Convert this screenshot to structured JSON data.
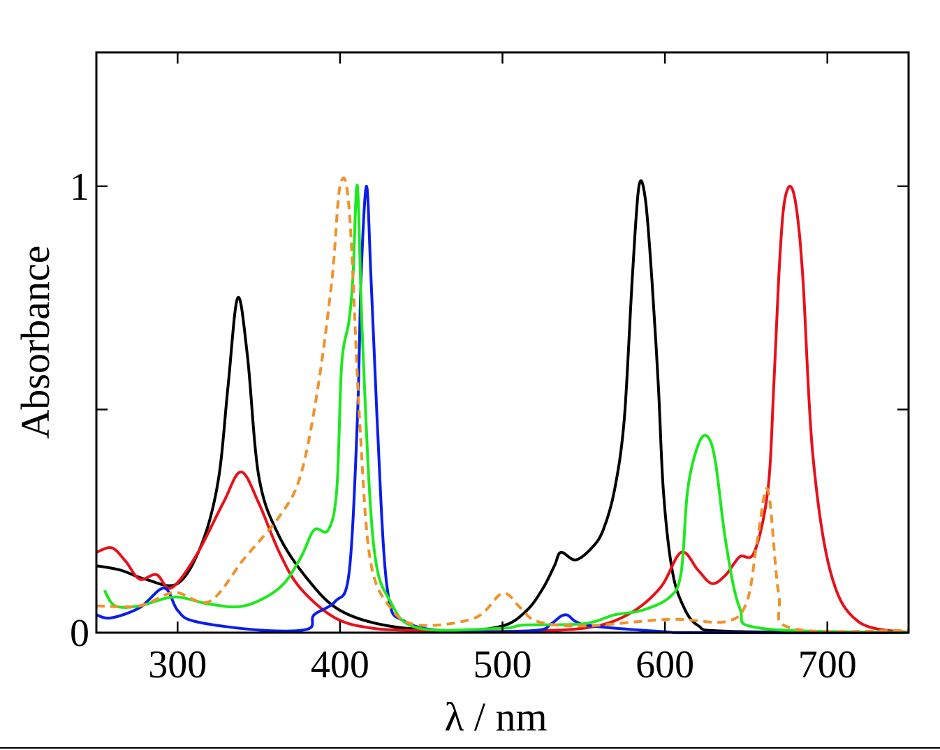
{
  "chart_data": {
    "type": "line",
    "title": "",
    "xlabel": "λ / nm",
    "ylabel": "Absorbance",
    "xlim": [
      250,
      750
    ],
    "ylim": [
      0,
      1.3
    ],
    "xticks": [
      300,
      400,
      500,
      600,
      700
    ],
    "xtick_labels": [
      "300",
      "400",
      "500",
      "600",
      "700"
    ],
    "yticks": [
      0,
      0.5,
      1
    ],
    "ytick_labels": [
      "0",
      "",
      "1"
    ],
    "grid": false,
    "legend": "none",
    "series": [
      {
        "name": "black",
        "color": "#000000",
        "dashed": false,
        "x": [
          250,
          265,
          280,
          300,
          315,
          325,
          331,
          337,
          343,
          350,
          362,
          380,
          400,
          430,
          470,
          500,
          515,
          525,
          532,
          536,
          545,
          555,
          562,
          569,
          575,
          580,
          584,
          588,
          592,
          596,
          599,
          604,
          610,
          620,
          640,
          750
        ],
        "y": [
          0.15,
          0.14,
          0.12,
          0.11,
          0.2,
          0.34,
          0.55,
          0.75,
          0.62,
          0.35,
          0.22,
          0.12,
          0.05,
          0.015,
          0.005,
          0.015,
          0.05,
          0.1,
          0.15,
          0.18,
          0.163,
          0.19,
          0.23,
          0.32,
          0.48,
          0.8,
          1.0,
          0.97,
          0.79,
          0.55,
          0.32,
          0.15,
          0.07,
          0.017,
          0.003,
          0
        ]
      },
      {
        "name": "red",
        "color": "#e8101a",
        "dashed": false,
        "x": [
          250,
          259.5,
          268,
          276.6,
          287,
          296,
          311,
          328,
          339,
          350,
          362.6,
          375.5,
          397,
          420,
          450,
          500,
          550,
          577,
          597,
          610,
          620.4,
          629,
          637.6,
          646,
          655,
          663.4,
          667,
          670,
          673,
          677,
          681,
          685,
          691,
          702,
          719,
          750
        ],
        "y": [
          0.18,
          0.19,
          0.16,
          0.12,
          0.13,
          0.1,
          0.17,
          0.29,
          0.36,
          0.29,
          0.18,
          0.1,
          0.033,
          0.01,
          0.005,
          0.003,
          0.01,
          0.04,
          0.1,
          0.18,
          0.14,
          0.11,
          0.13,
          0.17,
          0.18,
          0.32,
          0.55,
          0.79,
          0.95,
          1.0,
          0.95,
          0.79,
          0.4,
          0.135,
          0.025,
          0
        ]
      },
      {
        "name": "blue",
        "color": "#0a1ee8",
        "dashed": false,
        "x": [
          250,
          259,
          276.6,
          291.7,
          300,
          311,
          350,
          380,
          384,
          397,
          405.6,
          410.7,
          413,
          416.3,
          419,
          422.8,
          429,
          440,
          470,
          520,
          530,
          539,
          551.7,
          600,
          620,
          750
        ],
        "y": [
          0.04,
          0.033,
          0.056,
          0.1,
          0.05,
          0.025,
          0.006,
          0.008,
          0.04,
          0.07,
          0.135,
          0.48,
          0.8,
          1.0,
          0.8,
          0.48,
          0.1,
          0.025,
          0.003,
          0.005,
          0.02,
          0.04,
          0.017,
          0.002,
          0,
          0
        ]
      },
      {
        "name": "green",
        "color": "#1ee81e",
        "dashed": false,
        "x": [
          255,
          261.6,
          276.6,
          298,
          319.6,
          341,
          362.6,
          375.5,
          384,
          392.7,
          398,
          401,
          405.6,
          408,
          410.7,
          414,
          420.6,
          431,
          448.5,
          500,
          513,
          550,
          569,
          586,
          603,
          610,
          614,
          620.4,
          626,
          631,
          637.6,
          646,
          659,
          750
        ],
        "y": [
          0.095,
          0.06,
          0.06,
          0.08,
          0.064,
          0.06,
          0.1,
          0.166,
          0.23,
          0.23,
          0.32,
          0.6,
          0.7,
          0.8,
          1.0,
          0.64,
          0.2,
          0.07,
          0.01,
          0.01,
          0.017,
          0.02,
          0.04,
          0.05,
          0.08,
          0.135,
          0.32,
          0.42,
          0.44,
          0.385,
          0.2,
          0.056,
          0.01,
          0
        ]
      },
      {
        "name": "orange",
        "color": "#f0922a",
        "dashed": true,
        "x": [
          250,
          276.6,
          298,
          319.6,
          341,
          362.6,
          375.5,
          386,
          395,
          400,
          405.6,
          412,
          418.5,
          431,
          448.5,
          483,
          500,
          511,
          521.6,
          550,
          603,
          637.6,
          650.5,
          657,
          663.4,
          670,
          678,
          750
        ],
        "y": [
          0.06,
          0.06,
          0.09,
          0.07,
          0.166,
          0.26,
          0.35,
          0.54,
          0.79,
          1.0,
          0.95,
          0.48,
          0.166,
          0.056,
          0.017,
          0.033,
          0.088,
          0.056,
          0.025,
          0.015,
          0.03,
          0.025,
          0.07,
          0.21,
          0.32,
          0.088,
          0.01,
          0.005
        ]
      }
    ]
  }
}
